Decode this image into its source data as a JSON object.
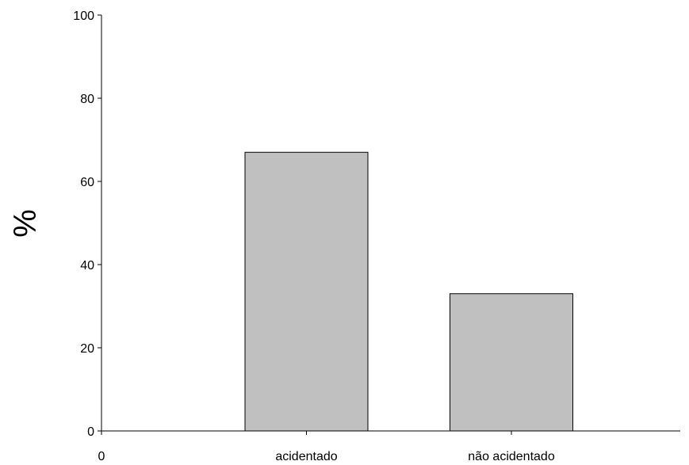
{
  "chart_data": {
    "type": "bar",
    "title": "",
    "xlabel": "",
    "ylabel": "%",
    "categories": [
      "acidentado",
      "não acidentado"
    ],
    "values": [
      67,
      33
    ],
    "x_origin_label": "0",
    "ylim": [
      0,
      100
    ],
    "yticks": [
      0,
      20,
      40,
      60,
      80,
      100
    ],
    "grid": false,
    "legend": "none",
    "colors": {
      "bar_fill": "#c0c0c0",
      "bar_stroke": "#000000",
      "axis": "#000000"
    }
  }
}
